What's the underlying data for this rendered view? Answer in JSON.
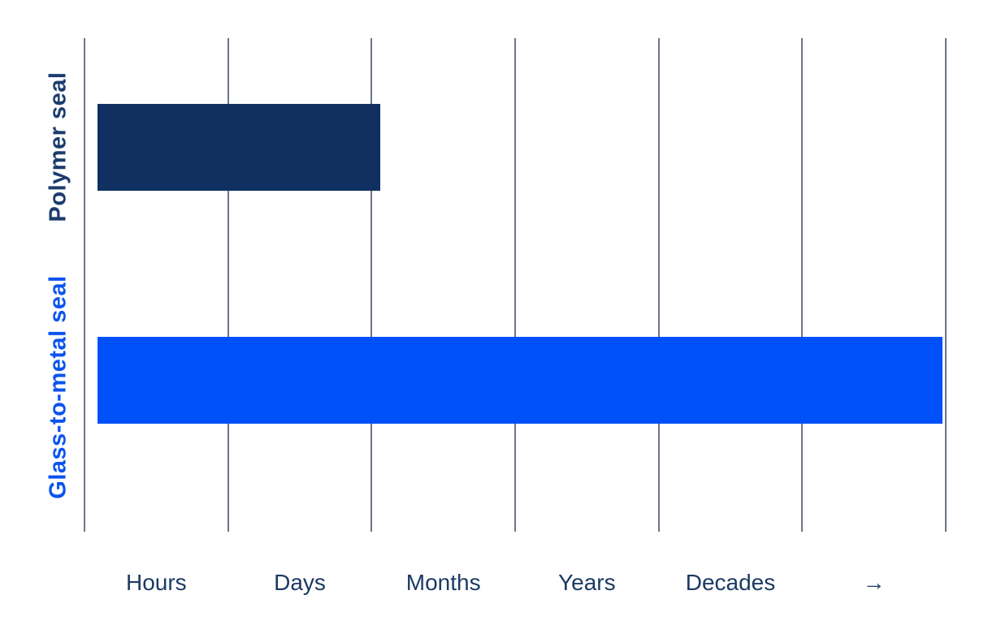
{
  "chart_data": {
    "type": "bar",
    "orientation": "horizontal",
    "title": "",
    "xlabel": "",
    "ylabel": "",
    "grid": true,
    "gridline_color": "#6b7585",
    "background_color": "#ffffff",
    "x_tick_labels": [
      "Hours",
      "Days",
      "Months",
      "Years",
      "Decades",
      "→"
    ],
    "x_tick_label_color": "#1b3a63",
    "xlim": [
      0,
      6
    ],
    "units": "x-axis gridline intervals (qualitative leak-tight lifetime scale: each interval spans one labelled magnitude; 0 = left axis, 6 = rightmost gridline)",
    "categories": [
      "Polymer seal",
      "Glass-to-metal seal"
    ],
    "category_label_colors": [
      "#1c3c6e",
      "#0c54ee"
    ],
    "bar_colors": [
      "#0f3060",
      "#0050fa"
    ],
    "bar_start": 0.09,
    "values": [
      2.06,
      5.98
    ],
    "reading": [
      "Polymer seal bar spans from Hours to just past the Days/Months boundary (lifetime of hours to days, up to a few months)",
      "Glass-to-metal seal bar spans the full axis from Hours through Decades to the arrow (lifetime of decades and beyond)"
    ]
  }
}
